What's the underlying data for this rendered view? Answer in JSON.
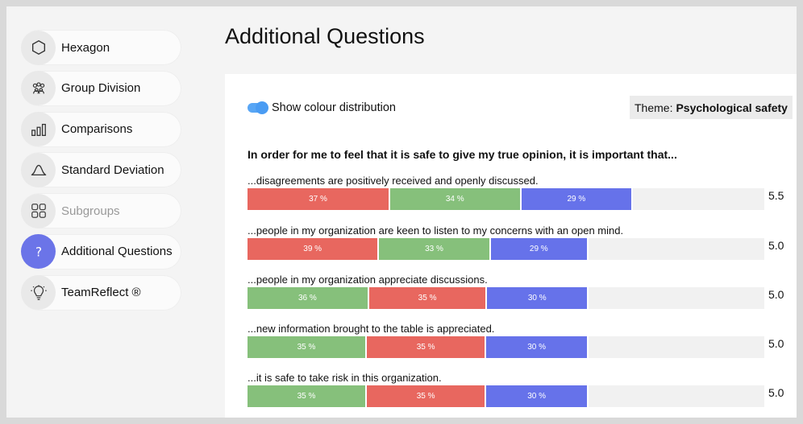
{
  "sidebar": {
    "items": [
      {
        "id": "hexagon",
        "label": "Hexagon",
        "icon": "hexagon-icon",
        "state": "normal"
      },
      {
        "id": "group-division",
        "label": "Group Division",
        "icon": "group-icon",
        "state": "normal"
      },
      {
        "id": "comparisons",
        "label": "Comparisons",
        "icon": "bar-chart-icon",
        "state": "normal"
      },
      {
        "id": "standard-deviation",
        "label": "Standard Deviation",
        "icon": "bell-curve-icon",
        "state": "normal"
      },
      {
        "id": "subgroups",
        "label": "Subgroups",
        "icon": "grid-icon",
        "state": "disabled"
      },
      {
        "id": "additional-questions",
        "label": "Additional Questions",
        "icon": "question-icon",
        "state": "active"
      },
      {
        "id": "teamreflect",
        "label": "TeamReflect ®",
        "icon": "lightbulb-icon",
        "state": "normal"
      }
    ]
  },
  "header": {
    "title": "Additional Questions"
  },
  "controls": {
    "toggle_label": "Show colour distribution",
    "toggle_on": true,
    "theme_label": "Theme:",
    "theme_value": "Psychological safety"
  },
  "question": "In order for me to feel that it is safe to give my true opinion, it is important that...",
  "colors": {
    "red": "#e8675f",
    "green": "#86c07b",
    "blue": "#6672ea",
    "track": "#f1f1f1"
  },
  "statements": [
    {
      "text": "...disagreements are positively received and openly discussed.",
      "score": "5.5",
      "segments": [
        {
          "color": "red",
          "pct": 37,
          "label": "37 %"
        },
        {
          "color": "green",
          "pct": 34,
          "label": "34 %"
        },
        {
          "color": "blue",
          "pct": 29,
          "label": "29 %"
        }
      ],
      "bar_fill": 0.746
    },
    {
      "text": "...people in my organization are keen to listen to my concerns with an open mind.",
      "score": "5.0",
      "segments": [
        {
          "color": "red",
          "pct": 39,
          "label": "39 %"
        },
        {
          "color": "green",
          "pct": 33,
          "label": "33 %"
        },
        {
          "color": "blue",
          "pct": 29,
          "label": "29 %"
        }
      ],
      "bar_fill": 0.66
    },
    {
      "text": "...people in my organization appreciate discussions.",
      "score": "5.0",
      "segments": [
        {
          "color": "green",
          "pct": 36,
          "label": "36 %"
        },
        {
          "color": "red",
          "pct": 35,
          "label": "35 %"
        },
        {
          "color": "blue",
          "pct": 30,
          "label": "30 %"
        }
      ],
      "bar_fill": 0.66
    },
    {
      "text": "...new information brought to the table is appreciated.",
      "score": "5.0",
      "segments": [
        {
          "color": "green",
          "pct": 35,
          "label": "35 %"
        },
        {
          "color": "red",
          "pct": 35,
          "label": "35 %"
        },
        {
          "color": "blue",
          "pct": 30,
          "label": "30 %"
        }
      ],
      "bar_fill": 0.66
    },
    {
      "text": "...it is safe to take risk in this organization.",
      "score": "5.0",
      "segments": [
        {
          "color": "green",
          "pct": 35,
          "label": "35 %"
        },
        {
          "color": "red",
          "pct": 35,
          "label": "35 %"
        },
        {
          "color": "blue",
          "pct": 30,
          "label": "30 %"
        }
      ],
      "bar_fill": 0.66
    }
  ]
}
